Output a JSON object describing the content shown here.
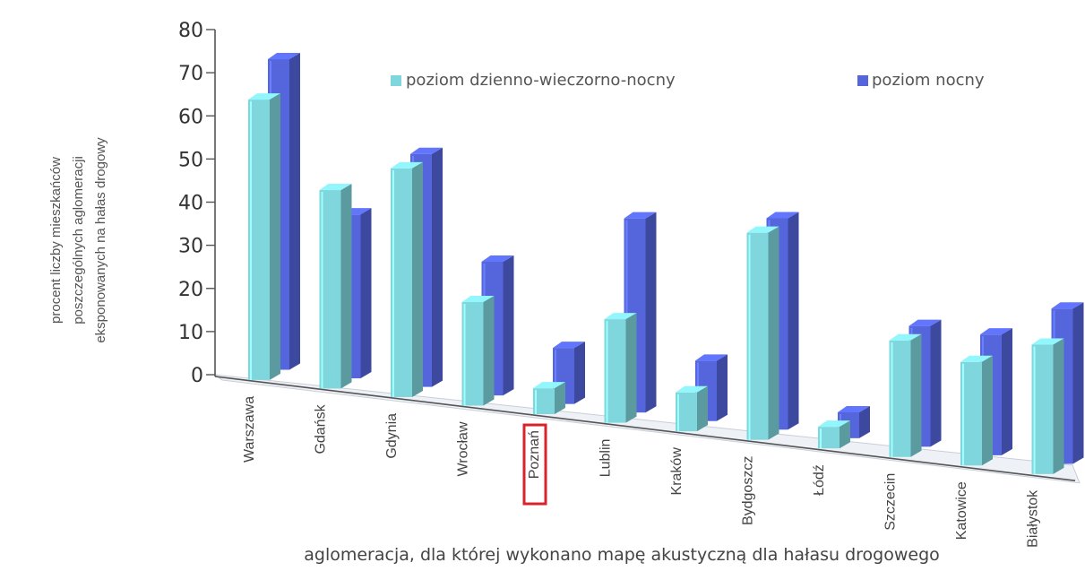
{
  "chart_data": {
    "type": "bar",
    "title": "",
    "categories": [
      "Warszawa",
      "Gdańsk",
      "Gdynia",
      "Wrocław",
      "Poznań",
      "Lublin",
      "Kraków",
      "Bydgoszcz",
      "Łódź",
      "Szczecin",
      "Katowice",
      "Białystok"
    ],
    "series": [
      {
        "name": "poziom dzienno-wieczorno-nocny",
        "color": "#7fd6dc",
        "values": [
          65,
          46,
          53,
          24,
          6,
          24,
          9,
          48,
          5,
          27,
          24,
          30
        ]
      },
      {
        "name": "poziom nocny",
        "color": "#5566dd",
        "values": [
          72,
          38,
          54,
          31,
          13,
          45,
          14,
          49,
          6,
          28,
          28,
          36
        ]
      }
    ],
    "ylim": [
      0,
      80
    ],
    "yticks": [
      0,
      10,
      20,
      30,
      40,
      50,
      60,
      70,
      80
    ],
    "ylabel": "procent liczby mieszkańców poszczególnych aglomeracji eksponowanych na hałas drogowy",
    "xlabel": "aglomeracja, dla której wykonano mapę akustyczną dla hałasu drogowego",
    "highlighted_category": "Poznań",
    "highlight_color": "#d9232a",
    "legend_position": "top",
    "grid": false
  },
  "ylabel_lines": [
    "procent liczby mieszkańców",
    "poszczególnych aglomeracji",
    "eksponowanych na hałas drogowy"
  ]
}
